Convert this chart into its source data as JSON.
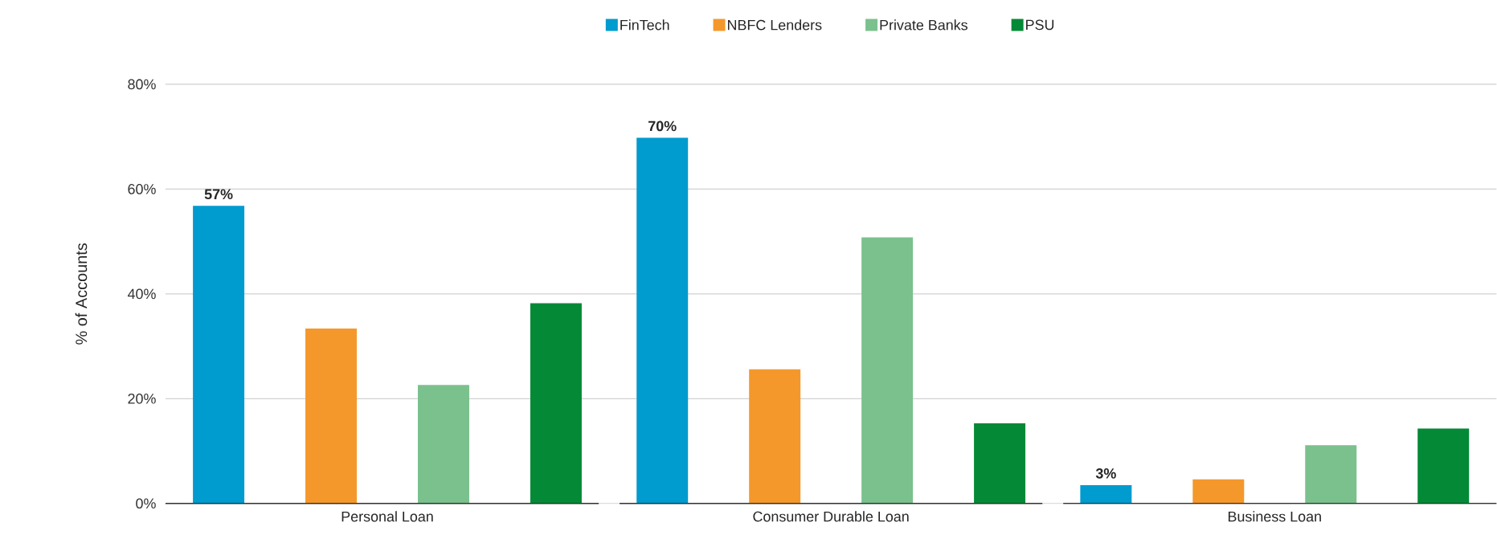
{
  "chart_data": {
    "type": "bar",
    "ylabel": "% of Accounts",
    "categories": [
      "Personal Loan",
      "Consumer Durable Loan",
      "Business Loan"
    ],
    "series": [
      {
        "name": "FinTech",
        "color": "#009bcf",
        "values": [
          56.8,
          69.8,
          3.5
        ],
        "value_labels": [
          "57%",
          "70%",
          "3%"
        ]
      },
      {
        "name": "NBFC Lenders",
        "color": "#f4982c",
        "values": [
          33.4,
          25.6,
          4.6
        ]
      },
      {
        "name": "Private Banks",
        "color": "#7bc18d",
        "values": [
          22.6,
          50.8,
          11.1
        ]
      },
      {
        "name": "PSU",
        "color": "#048936",
        "values": [
          38.2,
          15.3,
          14.3
        ]
      }
    ],
    "ylim": [
      0,
      80
    ],
    "yticks": [
      {
        "value": 0,
        "label": "0%"
      },
      {
        "value": 20,
        "label": "20%"
      },
      {
        "value": 40,
        "label": "40%"
      },
      {
        "value": 60,
        "label": "60%"
      },
      {
        "value": 80,
        "label": "80%"
      }
    ],
    "grid": "y",
    "legend": "top"
  }
}
